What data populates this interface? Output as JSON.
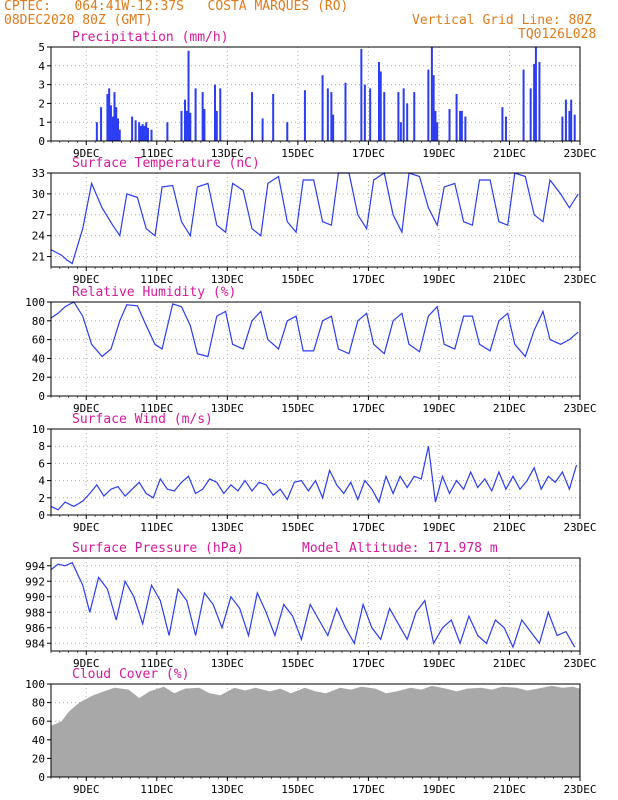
{
  "header": {
    "line1": "CPTEC:   064:41W-12:37S   COSTA MARQUES (RO)",
    "line2": "08DEC2020 80Z (GMT)",
    "vgrid": "Vertical Grid Line: 80Z",
    "code": "TQ0126L028"
  },
  "colors": {
    "header": "#e07b1a",
    "title": "#d8189a",
    "series": "#2c3cf2",
    "cloud": "#a8a8a8",
    "frame": "#000000"
  },
  "x_axis": {
    "range": [
      8.0,
      23.0
    ],
    "ticks": [
      9,
      11,
      13,
      15,
      17,
      19,
      21,
      23
    ],
    "tick_labels": [
      "9DEC",
      "11DEC",
      "13DEC",
      "15DEC",
      "17DEC",
      "19DEC",
      "21DEC",
      "23DEC"
    ]
  },
  "chart_data": [
    {
      "id": "precip",
      "type": "bar",
      "title": "Precipitation (mm/h)",
      "ylim": [
        0,
        5
      ],
      "yticks": [
        0,
        1,
        2,
        3,
        4,
        5
      ],
      "x": [
        9.3,
        9.42,
        9.6,
        9.65,
        9.7,
        9.75,
        9.8,
        9.85,
        9.9,
        9.95,
        10.3,
        10.4,
        10.5,
        10.55,
        10.6,
        10.65,
        10.7,
        10.75,
        10.85,
        11.3,
        11.7,
        11.8,
        11.85,
        11.9,
        11.95,
        12.1,
        12.3,
        12.35,
        12.65,
        12.7,
        12.8,
        13.7,
        14.0,
        14.3,
        14.7,
        15.2,
        15.7,
        15.85,
        15.95,
        16.0,
        16.35,
        16.8,
        16.9,
        17.05,
        17.3,
        17.35,
        17.45,
        17.85,
        17.92,
        18.0,
        18.1,
        18.3,
        18.7,
        18.8,
        18.85,
        18.9,
        18.95,
        19.3,
        19.5,
        19.6,
        19.65,
        19.75,
        20.8,
        20.9,
        21.4,
        21.6,
        21.7,
        21.75,
        21.85,
        22.5,
        22.6,
        22.7,
        22.75,
        22.85
      ],
      "values": [
        1.0,
        1.8,
        2.5,
        2.8,
        1.9,
        1.3,
        2.6,
        1.8,
        1.2,
        0.6,
        1.3,
        1.1,
        1.0,
        0.8,
        0.9,
        0.8,
        1.0,
        0.7,
        0.6,
        1.0,
        1.6,
        2.2,
        1.6,
        4.8,
        1.5,
        2.8,
        2.6,
        1.7,
        3.0,
        1.6,
        2.8,
        2.6,
        1.2,
        2.5,
        1.0,
        2.7,
        3.5,
        2.8,
        2.6,
        1.4,
        3.1,
        4.9,
        3.0,
        2.8,
        4.2,
        3.7,
        2.6,
        2.6,
        1.0,
        2.8,
        2.0,
        2.6,
        3.8,
        5.0,
        3.5,
        1.6,
        1.0,
        1.7,
        2.5,
        1.6,
        1.6,
        1.3,
        1.8,
        1.3,
        3.8,
        2.8,
        4.1,
        5.0,
        4.2,
        1.3,
        2.2,
        1.6,
        2.2,
        1.4
      ]
    },
    {
      "id": "temp",
      "type": "line",
      "title": "Surface Temperature (nC)",
      "ylim": [
        19.5,
        33
      ],
      "yticks": [
        21,
        24,
        27,
        30,
        33
      ],
      "x": [
        8.0,
        8.3,
        8.45,
        8.6,
        8.9,
        9.15,
        9.45,
        9.75,
        9.95,
        10.15,
        10.45,
        10.7,
        10.95,
        11.15,
        11.45,
        11.7,
        11.95,
        12.15,
        12.45,
        12.7,
        12.95,
        13.15,
        13.45,
        13.7,
        13.95,
        14.15,
        14.45,
        14.7,
        14.95,
        15.15,
        15.45,
        15.7,
        15.95,
        16.15,
        16.45,
        16.7,
        16.95,
        17.15,
        17.45,
        17.7,
        17.95,
        18.15,
        18.45,
        18.7,
        18.95,
        19.15,
        19.45,
        19.7,
        19.95,
        20.15,
        20.45,
        20.7,
        20.95,
        21.15,
        21.45,
        21.7,
        21.95,
        22.15,
        22.45,
        22.7,
        22.95
      ],
      "values": [
        22.0,
        21.2,
        20.5,
        20.0,
        25.0,
        31.5,
        28.0,
        25.5,
        24.0,
        30.0,
        29.5,
        25.0,
        24.0,
        31.0,
        31.2,
        26.0,
        24.0,
        31.0,
        31.5,
        25.5,
        24.5,
        31.5,
        30.5,
        25.0,
        24.0,
        31.5,
        32.5,
        26.0,
        24.5,
        32.0,
        32.0,
        26.0,
        25.5,
        33.0,
        33.0,
        27.0,
        25.0,
        32.0,
        33.0,
        27.0,
        24.5,
        33.0,
        32.5,
        28.0,
        25.5,
        31.0,
        31.5,
        26.0,
        25.5,
        32.0,
        32.0,
        26.0,
        25.5,
        33.0,
        32.5,
        27.0,
        26.0,
        32.0,
        30.0,
        28.0,
        30.0
      ]
    },
    {
      "id": "rh",
      "type": "line",
      "title": "Relative Humidity (%)",
      "ylim": [
        0,
        100
      ],
      "yticks": [
        0,
        20,
        40,
        60,
        80,
        100
      ],
      "x": [
        8.0,
        8.2,
        8.4,
        8.65,
        8.9,
        9.15,
        9.45,
        9.7,
        9.95,
        10.15,
        10.45,
        10.7,
        10.95,
        11.15,
        11.45,
        11.7,
        11.95,
        12.15,
        12.45,
        12.7,
        12.95,
        13.15,
        13.45,
        13.7,
        13.95,
        14.15,
        14.45,
        14.7,
        14.95,
        15.15,
        15.45,
        15.7,
        15.95,
        16.15,
        16.45,
        16.7,
        16.95,
        17.15,
        17.45,
        17.7,
        17.95,
        18.15,
        18.45,
        18.7,
        18.95,
        19.15,
        19.45,
        19.7,
        19.95,
        20.15,
        20.45,
        20.7,
        20.95,
        21.15,
        21.45,
        21.7,
        21.95,
        22.15,
        22.45,
        22.7,
        22.95
      ],
      "values": [
        83,
        88,
        95,
        100,
        85,
        55,
        42,
        50,
        80,
        97,
        96,
        75,
        55,
        50,
        98,
        95,
        75,
        45,
        42,
        85,
        90,
        55,
        50,
        80,
        90,
        60,
        50,
        80,
        85,
        48,
        48,
        80,
        85,
        50,
        45,
        80,
        88,
        55,
        45,
        80,
        88,
        55,
        47,
        85,
        95,
        55,
        50,
        85,
        85,
        55,
        48,
        80,
        88,
        55,
        42,
        70,
        90,
        60,
        55,
        60,
        68
      ]
    },
    {
      "id": "wind",
      "type": "line",
      "title": "Surface Wind (m/s)",
      "ylim": [
        0,
        10
      ],
      "yticks": [
        0,
        2,
        4,
        6,
        8,
        10
      ],
      "x": [
        8.0,
        8.2,
        8.4,
        8.65,
        8.9,
        9.1,
        9.3,
        9.5,
        9.7,
        9.9,
        10.1,
        10.3,
        10.5,
        10.7,
        10.9,
        11.1,
        11.3,
        11.5,
        11.7,
        11.9,
        12.1,
        12.3,
        12.5,
        12.7,
        12.9,
        13.1,
        13.3,
        13.5,
        13.7,
        13.9,
        14.1,
        14.3,
        14.5,
        14.7,
        14.9,
        15.1,
        15.3,
        15.5,
        15.7,
        15.9,
        16.1,
        16.3,
        16.5,
        16.7,
        16.9,
        17.1,
        17.3,
        17.5,
        17.7,
        17.9,
        18.1,
        18.3,
        18.5,
        18.7,
        18.9,
        19.1,
        19.3,
        19.5,
        19.7,
        19.9,
        20.1,
        20.3,
        20.5,
        20.7,
        20.9,
        21.1,
        21.3,
        21.5,
        21.7,
        21.9,
        22.1,
        22.3,
        22.5,
        22.7,
        22.9
      ],
      "values": [
        1.0,
        0.6,
        1.5,
        1.0,
        1.6,
        2.5,
        3.5,
        2.2,
        3.0,
        3.3,
        2.2,
        3.0,
        3.8,
        2.5,
        2.0,
        4.2,
        3.0,
        2.8,
        3.8,
        4.5,
        2.5,
        3.0,
        4.2,
        3.8,
        2.5,
        3.5,
        2.8,
        4.0,
        2.8,
        3.8,
        3.5,
        2.3,
        3.0,
        1.8,
        3.8,
        4.0,
        2.8,
        4.0,
        2.0,
        5.2,
        3.5,
        2.5,
        3.8,
        1.8,
        4.0,
        3.0,
        1.5,
        4.5,
        2.5,
        4.5,
        3.2,
        4.5,
        4.2,
        8.0,
        1.5,
        4.5,
        2.5,
        4.0,
        3.0,
        5.0,
        3.2,
        4.2,
        2.8,
        5.0,
        3.0,
        4.5,
        3.0,
        4.0,
        5.5,
        3.0,
        4.5,
        3.8,
        5.0,
        3.0,
        5.8
      ]
    },
    {
      "id": "press",
      "type": "line",
      "title": "Surface Pressure (hPa)",
      "annotation": "Model Altitude: 171.978 m",
      "ylim": [
        983,
        995
      ],
      "yticks": [
        984,
        986,
        988,
        990,
        992,
        994
      ],
      "x": [
        8.0,
        8.2,
        8.4,
        8.6,
        8.9,
        9.1,
        9.35,
        9.6,
        9.85,
        10.1,
        10.35,
        10.6,
        10.85,
        11.1,
        11.35,
        11.6,
        11.85,
        12.1,
        12.35,
        12.6,
        12.85,
        13.1,
        13.35,
        13.6,
        13.85,
        14.1,
        14.35,
        14.6,
        14.85,
        15.1,
        15.35,
        15.6,
        15.85,
        16.1,
        16.35,
        16.6,
        16.85,
        17.1,
        17.35,
        17.6,
        17.85,
        18.1,
        18.35,
        18.6,
        18.85,
        19.1,
        19.35,
        19.6,
        19.85,
        20.1,
        20.35,
        20.6,
        20.85,
        21.1,
        21.35,
        21.6,
        21.85,
        22.1,
        22.35,
        22.6,
        22.85
      ],
      "values": [
        993.5,
        994.2,
        994.0,
        994.4,
        991.5,
        988.0,
        992.5,
        991.0,
        987.0,
        992.0,
        990.0,
        986.5,
        991.5,
        989.5,
        985.0,
        991.0,
        989.5,
        985.0,
        990.5,
        989.0,
        986.0,
        990.0,
        988.5,
        985.0,
        990.5,
        988.0,
        985.0,
        989.0,
        987.5,
        984.5,
        989.0,
        987.0,
        985.0,
        988.5,
        986.0,
        984.0,
        989.0,
        986.0,
        984.5,
        988.5,
        986.5,
        984.5,
        988.0,
        989.5,
        984.0,
        986.0,
        987.0,
        984.0,
        987.5,
        985.0,
        984.0,
        987.0,
        986.0,
        983.5,
        987.0,
        985.5,
        984.0,
        988.0,
        985.0,
        985.5,
        983.5
      ]
    },
    {
      "id": "cloud",
      "type": "area",
      "title": "Cloud Cover (%)",
      "ylim": [
        0,
        100
      ],
      "yticks": [
        0,
        20,
        40,
        60,
        80,
        100
      ],
      "x": [
        8.0,
        8.3,
        8.5,
        8.8,
        9.2,
        9.5,
        9.8,
        10.2,
        10.5,
        10.8,
        11.2,
        11.5,
        11.8,
        12.2,
        12.5,
        12.8,
        13.2,
        13.5,
        13.8,
        14.2,
        14.5,
        14.8,
        15.2,
        15.5,
        15.8,
        16.2,
        16.5,
        16.8,
        17.2,
        17.5,
        17.8,
        18.2,
        18.5,
        18.8,
        19.2,
        19.5,
        19.8,
        20.2,
        20.5,
        20.8,
        21.2,
        21.5,
        21.8,
        22.2,
        22.5,
        22.8,
        23.0
      ],
      "values": [
        55,
        60,
        70,
        80,
        88,
        92,
        96,
        94,
        85,
        92,
        97,
        90,
        95,
        96,
        90,
        88,
        96,
        93,
        96,
        92,
        95,
        90,
        96,
        92,
        90,
        96,
        94,
        97,
        95,
        90,
        92,
        96,
        94,
        98,
        95,
        92,
        95,
        96,
        94,
        97,
        96,
        93,
        95,
        98,
        96,
        97,
        95
      ]
    }
  ]
}
